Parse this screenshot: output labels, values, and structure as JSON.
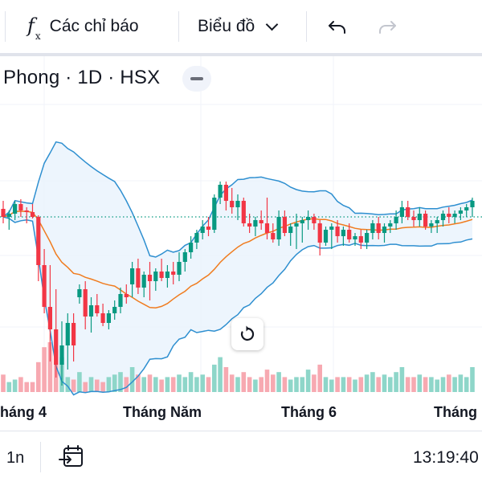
{
  "toolbar": {
    "indicators_label": "Các chỉ báo",
    "chart_type_label": "Biểu đồ",
    "icons": [
      "function-icon",
      "chevron-down-icon",
      "undo-icon",
      "redo-icon"
    ]
  },
  "legend": {
    "title": "Phong · 1D · HSX"
  },
  "chart_data": {
    "type": "candlestick",
    "x_tick_labels": [
      "háng 4",
      "Tháng Năm",
      "Tháng 6",
      "Tháng"
    ],
    "indicators": [
      "bollinger-upper",
      "bollinger-basis",
      "bollinger-lower",
      "volume"
    ],
    "colors": {
      "up": "#089981",
      "down": "#f23645",
      "volume_up": "#8ed6c9",
      "volume_down": "#f7a9b1",
      "band_line": "#2e8fd0",
      "basis_line": "#f07c1f",
      "band_fill": "#e8f3fc",
      "price_line": "#089981"
    },
    "price_line_value": 100,
    "candles": [
      [
        105,
        110,
        96,
        100
      ],
      [
        100,
        104,
        92,
        102
      ],
      [
        102,
        110,
        98,
        108
      ],
      [
        108,
        111,
        100,
        104
      ],
      [
        104,
        106,
        96,
        103
      ],
      [
        103,
        108,
        99,
        100
      ],
      [
        100,
        101,
        60,
        70
      ],
      [
        70,
        80,
        40,
        44
      ],
      [
        44,
        70,
        10,
        30
      ],
      [
        30,
        55,
        0,
        8
      ],
      [
        8,
        35,
        -5,
        20
      ],
      [
        20,
        40,
        5,
        34
      ],
      [
        34,
        40,
        10,
        20
      ],
      [
        50,
        58,
        46,
        55
      ],
      [
        55,
        60,
        30,
        38
      ],
      [
        38,
        50,
        28,
        45
      ],
      [
        45,
        52,
        38,
        40
      ],
      [
        40,
        46,
        32,
        34
      ],
      [
        34,
        42,
        30,
        40
      ],
      [
        40,
        48,
        36,
        44
      ],
      [
        44,
        56,
        40,
        52
      ],
      [
        52,
        58,
        46,
        50
      ],
      [
        58,
        72,
        50,
        68
      ],
      [
        68,
        74,
        52,
        56
      ],
      [
        56,
        66,
        50,
        64
      ],
      [
        64,
        72,
        48,
        60
      ],
      [
        60,
        68,
        54,
        66
      ],
      [
        66,
        74,
        60,
        62
      ],
      [
        62,
        70,
        56,
        66
      ],
      [
        66,
        72,
        58,
        64
      ],
      [
        64,
        78,
        60,
        72
      ],
      [
        72,
        80,
        66,
        78
      ],
      [
        78,
        88,
        74,
        84
      ],
      [
        84,
        92,
        80,
        90
      ],
      [
        90,
        98,
        86,
        94
      ],
      [
        94,
        100,
        88,
        92
      ],
      [
        92,
        114,
        90,
        112
      ],
      [
        112,
        122,
        108,
        120
      ],
      [
        120,
        122,
        104,
        110
      ],
      [
        110,
        118,
        102,
        106
      ],
      [
        106,
        114,
        98,
        110
      ],
      [
        110,
        112,
        94,
        96
      ],
      [
        96,
        102,
        90,
        94
      ],
      [
        94,
        100,
        88,
        98
      ],
      [
        98,
        104,
        92,
        96
      ],
      [
        96,
        112,
        86,
        90
      ],
      [
        90,
        96,
        84,
        86
      ],
      [
        86,
        104,
        82,
        100
      ],
      [
        100,
        104,
        88,
        90
      ],
      [
        90,
        96,
        82,
        94
      ],
      [
        94,
        102,
        80,
        96
      ],
      [
        96,
        100,
        84,
        98
      ],
      [
        98,
        104,
        92,
        100
      ],
      [
        100,
        102,
        92,
        96
      ],
      [
        96,
        98,
        76,
        84
      ],
      [
        84,
        94,
        82,
        92
      ],
      [
        92,
        96,
        80,
        94
      ],
      [
        94,
        98,
        84,
        88
      ],
      [
        88,
        94,
        82,
        92
      ],
      [
        92,
        96,
        84,
        86
      ],
      [
        86,
        90,
        82,
        88
      ],
      [
        88,
        92,
        80,
        84
      ],
      [
        84,
        92,
        80,
        90
      ],
      [
        90,
        98,
        86,
        96
      ],
      [
        96,
        100,
        86,
        90
      ],
      [
        90,
        96,
        84,
        94
      ],
      [
        94,
        98,
        90,
        96
      ],
      [
        96,
        104,
        92,
        100
      ],
      [
        100,
        110,
        96,
        106
      ],
      [
        106,
        110,
        98,
        100
      ],
      [
        100,
        104,
        94,
        98
      ],
      [
        98,
        106,
        94,
        102
      ],
      [
        102,
        104,
        92,
        94
      ],
      [
        94,
        98,
        90,
        96
      ],
      [
        96,
        100,
        90,
        98
      ],
      [
        98,
        104,
        94,
        102
      ],
      [
        102,
        106,
        96,
        100
      ],
      [
        100,
        104,
        96,
        102
      ],
      [
        102,
        106,
        98,
        104
      ],
      [
        104,
        108,
        100,
        106
      ],
      [
        106,
        112,
        100,
        110
      ]
    ],
    "volumes": [
      0.35,
      0.2,
      0.25,
      0.3,
      0.2,
      0.2,
      0.6,
      0.9,
      1.0,
      0.85,
      0.7,
      0.3,
      0.25,
      0.4,
      0.2,
      0.3,
      0.25,
      0.2,
      0.3,
      0.35,
      0.4,
      0.3,
      0.5,
      0.35,
      0.3,
      0.35,
      0.3,
      0.25,
      0.3,
      0.3,
      0.35,
      0.3,
      0.4,
      0.3,
      0.35,
      0.3,
      0.55,
      0.7,
      0.5,
      0.35,
      0.3,
      0.4,
      0.3,
      0.25,
      0.3,
      0.45,
      0.35,
      0.4,
      0.3,
      0.25,
      0.3,
      0.3,
      0.45,
      0.35,
      0.55,
      0.3,
      0.25,
      0.3,
      0.3,
      0.3,
      0.25,
      0.3,
      0.35,
      0.4,
      0.3,
      0.35,
      0.3,
      0.4,
      0.5,
      0.3,
      0.3,
      0.35,
      0.3,
      0.3,
      0.25,
      0.3,
      0.35,
      0.3,
      0.35,
      0.3,
      0.5
    ]
  },
  "bottombar": {
    "range_label": "1n",
    "time": "13:19:40",
    "icons": [
      "calendar-goto-icon"
    ]
  }
}
